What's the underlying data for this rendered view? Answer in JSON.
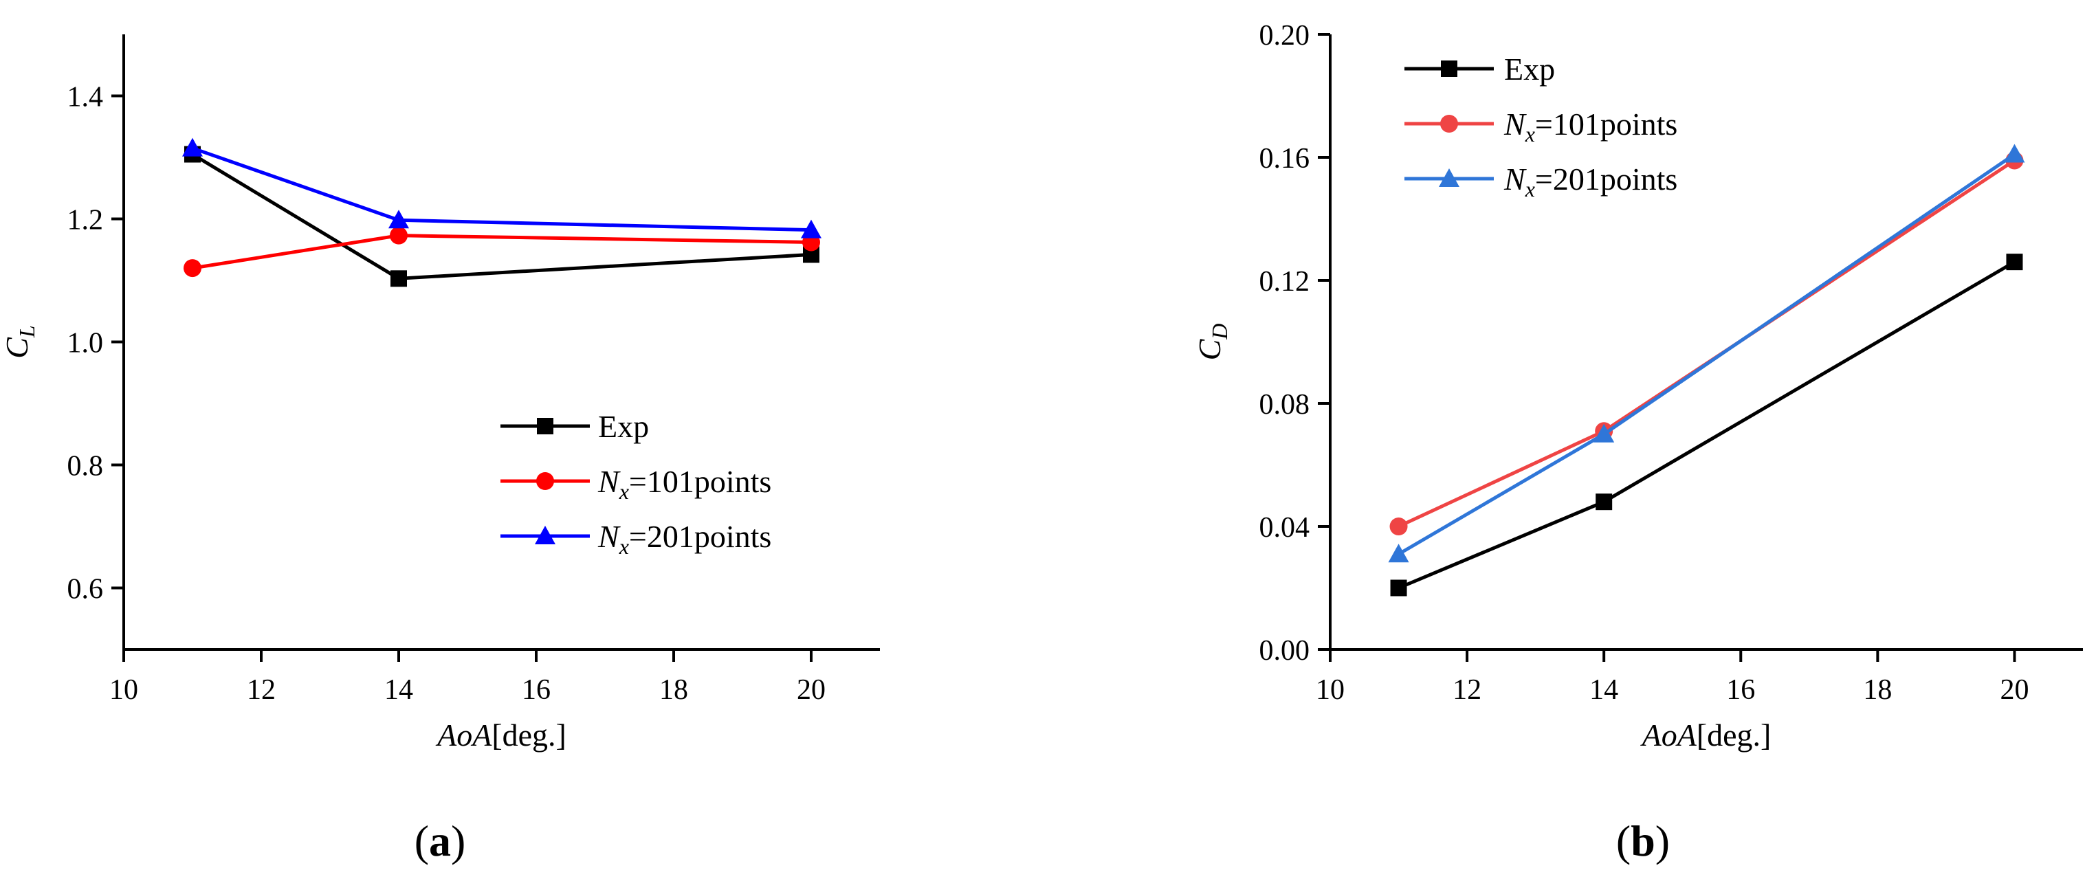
{
  "chart_data": [
    {
      "type": "line",
      "panel_label": "a",
      "title": "",
      "xlabel": {
        "italic": "AoA",
        "normal": "[deg.]"
      },
      "ylabel": {
        "base": "C",
        "sub": "L"
      },
      "xlim": [
        10,
        21
      ],
      "ylim": [
        0.5,
        1.5
      ],
      "xticks": [
        10,
        12,
        14,
        16,
        18,
        20
      ],
      "yticks": [
        0.6,
        0.8,
        1.0,
        1.2,
        1.4
      ],
      "ytick_labels": [
        "0.6",
        "0.8",
        "1.0",
        "1.2",
        "1.4"
      ],
      "legend_position": "lower-right",
      "series": [
        {
          "name": "Exp",
          "legend": {
            "normal": "Exp"
          },
          "color": "#000000",
          "marker": "square",
          "x": [
            11,
            14,
            20
          ],
          "values": [
            1.305,
            1.103,
            1.142
          ]
        },
        {
          "name": "Nx=101points",
          "legend": {
            "italic": "N",
            "sub": "x",
            "normal": "=101points"
          },
          "color": "#ff0000",
          "marker": "circle",
          "x": [
            11,
            14,
            20
          ],
          "values": [
            1.12,
            1.173,
            1.162
          ]
        },
        {
          "name": "Nx=201points",
          "legend": {
            "italic": "N",
            "sub": "x",
            "normal": "=201points"
          },
          "color": "#0000ff",
          "marker": "triangle",
          "x": [
            11,
            14,
            20
          ],
          "values": [
            1.315,
            1.198,
            1.182
          ]
        }
      ]
    },
    {
      "type": "line",
      "panel_label": "b",
      "title": "",
      "xlabel": {
        "italic": "AoA",
        "normal": "[deg.]"
      },
      "ylabel": {
        "base": "C",
        "sub": "D"
      },
      "xlim": [
        10,
        21
      ],
      "ylim": [
        0.0,
        0.2
      ],
      "xticks": [
        10,
        12,
        14,
        16,
        18,
        20
      ],
      "yticks": [
        0.0,
        0.04,
        0.08,
        0.12,
        0.16,
        0.2
      ],
      "ytick_labels": [
        "0.00",
        "0.04",
        "0.08",
        "0.12",
        "0.16",
        "0.20"
      ],
      "legend_position": "top-left",
      "series": [
        {
          "name": "Exp",
          "legend": {
            "normal": "Exp"
          },
          "color": "#000000",
          "marker": "square",
          "x": [
            11,
            14,
            20
          ],
          "values": [
            0.02,
            0.048,
            0.126
          ]
        },
        {
          "name": "Nx=101points",
          "legend": {
            "italic": "N",
            "sub": "x",
            "normal": "=101points"
          },
          "color": "#ef4444",
          "marker": "circle",
          "x": [
            11,
            14,
            20
          ],
          "values": [
            0.04,
            0.071,
            0.159
          ]
        },
        {
          "name": "Nx=201points",
          "legend": {
            "italic": "N",
            "sub": "x",
            "normal": "=201points"
          },
          "color": "#2f76d8",
          "marker": "triangle",
          "x": [
            11,
            14,
            20
          ],
          "values": [
            0.031,
            0.07,
            0.161
          ]
        }
      ]
    }
  ]
}
